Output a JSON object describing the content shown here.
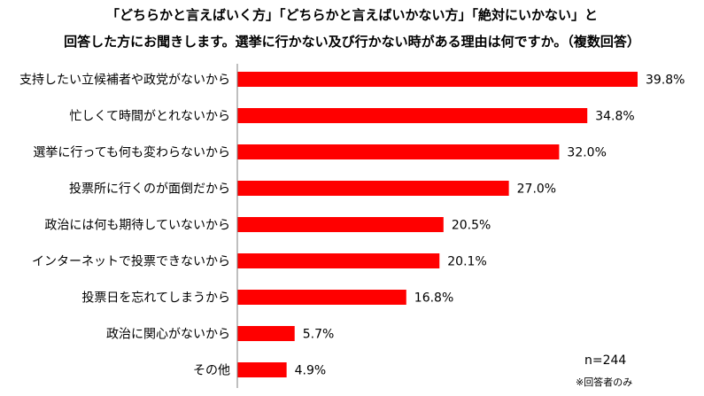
{
  "chart_data": {
    "type": "bar",
    "orientation": "horizontal",
    "title": [
      "「どちらかと言えばいく方」「どちらかと言えばいかない方」「絶対にいかない」と",
      "回答した方にお聞きします。選挙に行かない及び行かない時がある理由は何ですか。（複数回答）"
    ],
    "categories": [
      "支持したい立候補者や政党がないから",
      "忙しくて時間がとれないから",
      "選挙に行っても何も変わらないから",
      "投票所に行くのが面倒だから",
      "政治には何も期待していないから",
      "インターネットで投票できないから",
      "投票日を忘れてしまうから",
      "政治に関心がないから",
      "その他"
    ],
    "values": [
      39.8,
      34.8,
      32.0,
      27.0,
      20.5,
      20.1,
      16.8,
      5.7,
      4.9
    ],
    "value_labels": [
      "39.8%",
      "34.8%",
      "32.0%",
      "27.0%",
      "20.5%",
      "20.1%",
      "16.8%",
      "5.7%",
      "4.9%"
    ],
    "xlim": [
      0,
      40
    ],
    "grid": false,
    "bar_color": "#ff0000",
    "axis_color": "#7f7f7f",
    "sample_note": "n=244",
    "footnote": "※回答者のみ"
  }
}
